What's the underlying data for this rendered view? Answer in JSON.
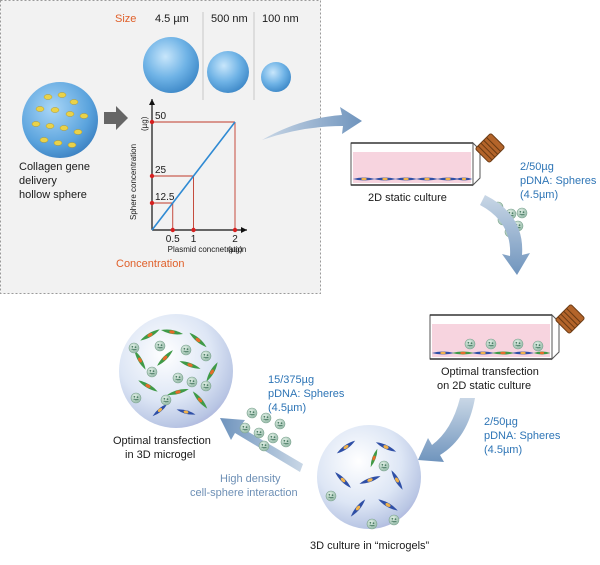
{
  "size_panel": {
    "size_label": "Size",
    "sizes": [
      "4.5 µm",
      "500 nm",
      "100 nm"
    ],
    "sphere_label": [
      "Collagen gene",
      "delivery",
      "hollow sphere"
    ],
    "concentration_label": "Concentration"
  },
  "chart_data": {
    "type": "line",
    "xlabel": "Plasmid concnetration",
    "xunit": "(µg)",
    "ylabel": "Sphere concentration",
    "yunit": "(µg)",
    "x_ticks": [
      "0.5",
      "1",
      "2"
    ],
    "y_ticks": [
      "12.5",
      "25",
      "50"
    ],
    "x": [
      0,
      0.5,
      1,
      2
    ],
    "y": [
      0,
      12.5,
      25,
      50
    ],
    "xlim": [
      0,
      2
    ],
    "ylim": [
      0,
      50
    ]
  },
  "flow": {
    "static_2d_label": "2D static culture",
    "ratio_1": [
      "2/50µg",
      "pDNA: Spheres",
      "(4.5µm)"
    ],
    "optimal_2d_label": [
      "Optimal transfection",
      "on 2D static culture"
    ],
    "ratio_2": [
      "2/50µg",
      "pDNA: Spheres",
      "(4.5µm)"
    ],
    "culture_3d_label": "3D culture in “microgels”",
    "ratio_3": [
      "15/375µg",
      "pDNA: Spheres",
      "(4.5µm)"
    ],
    "optimal_3d_label": [
      "Optimal transfection",
      "in 3D microgel"
    ],
    "interaction_label": [
      "High density",
      "cell-sphere interaction"
    ]
  }
}
